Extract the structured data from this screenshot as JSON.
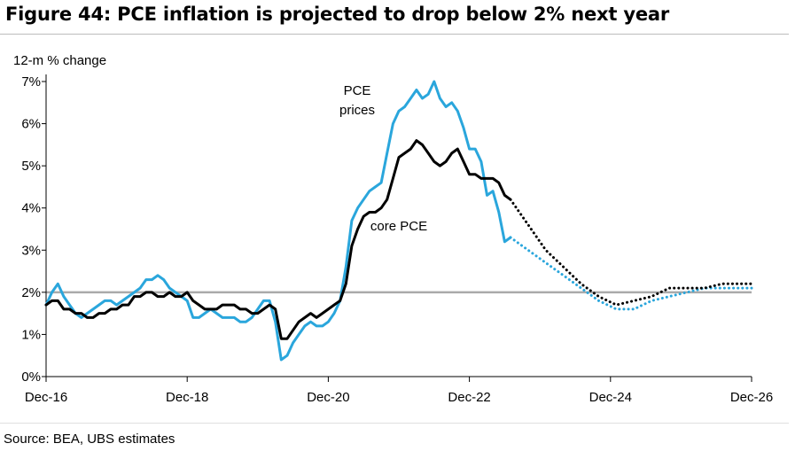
{
  "title": "Figure 44: PCE inflation is projected to drop below 2% next year",
  "source": "Source: BEA, UBS estimates",
  "chart_data": {
    "type": "line",
    "title": "Figure 44: PCE inflation is projected to drop below 2% next year",
    "ylabel": "12-m % change",
    "xlabel": "",
    "ylim": [
      0,
      7
    ],
    "yticks": [
      "0%",
      "1%",
      "2%",
      "3%",
      "4%",
      "5%",
      "6%",
      "7%"
    ],
    "xlim": [
      "2016-12",
      "2026-12"
    ],
    "xticks": [
      "Dec-16",
      "Dec-18",
      "Dec-20",
      "Dec-22",
      "Dec-24",
      "Dec-26"
    ],
    "grid": false,
    "reference_line": {
      "y": 2,
      "color": "#aaaaaa"
    },
    "annotations": [
      {
        "text": "PCE prices",
        "lines": [
          "PCE",
          "prices"
        ]
      },
      {
        "text": "core PCE",
        "lines": [
          "core PCE"
        ]
      }
    ],
    "series": [
      {
        "name": "PCE prices",
        "color": "#2aa6dc",
        "style": "solid",
        "x": [
          "2016-12",
          "2017-01",
          "2017-02",
          "2017-03",
          "2017-04",
          "2017-05",
          "2017-06",
          "2017-07",
          "2017-08",
          "2017-09",
          "2017-10",
          "2017-11",
          "2017-12",
          "2018-01",
          "2018-02",
          "2018-03",
          "2018-04",
          "2018-05",
          "2018-06",
          "2018-07",
          "2018-08",
          "2018-09",
          "2018-10",
          "2018-11",
          "2018-12",
          "2019-01",
          "2019-02",
          "2019-03",
          "2019-04",
          "2019-05",
          "2019-06",
          "2019-07",
          "2019-08",
          "2019-09",
          "2019-10",
          "2019-11",
          "2019-12",
          "2020-01",
          "2020-02",
          "2020-03",
          "2020-04",
          "2020-05",
          "2020-06",
          "2020-07",
          "2020-08",
          "2020-09",
          "2020-10",
          "2020-11",
          "2020-12",
          "2021-01",
          "2021-02",
          "2021-03",
          "2021-04",
          "2021-05",
          "2021-06",
          "2021-07",
          "2021-08",
          "2021-09",
          "2021-10",
          "2021-11",
          "2021-12",
          "2022-01",
          "2022-02",
          "2022-03",
          "2022-04",
          "2022-05",
          "2022-06",
          "2022-07",
          "2022-08",
          "2022-09",
          "2022-10",
          "2022-11",
          "2022-12",
          "2023-01",
          "2023-02",
          "2023-03",
          "2023-04",
          "2023-05",
          "2023-06",
          "2023-07"
        ],
        "values": [
          1.7,
          2.0,
          2.2,
          1.9,
          1.7,
          1.5,
          1.4,
          1.5,
          1.6,
          1.7,
          1.8,
          1.8,
          1.7,
          1.8,
          1.9,
          2.0,
          2.1,
          2.3,
          2.3,
          2.4,
          2.3,
          2.1,
          2.0,
          1.9,
          1.8,
          1.4,
          1.4,
          1.5,
          1.6,
          1.5,
          1.4,
          1.4,
          1.4,
          1.3,
          1.3,
          1.4,
          1.6,
          1.8,
          1.8,
          1.3,
          0.4,
          0.5,
          0.8,
          1.0,
          1.2,
          1.3,
          1.2,
          1.2,
          1.3,
          1.5,
          1.8,
          2.6,
          3.7,
          4.0,
          4.2,
          4.4,
          4.5,
          4.6,
          5.3,
          6.0,
          6.3,
          6.4,
          6.6,
          6.8,
          6.6,
          6.7,
          7.0,
          6.6,
          6.4,
          6.5,
          6.3,
          5.9,
          5.4,
          5.4,
          5.1,
          4.3,
          4.4,
          3.9,
          3.2,
          3.3
        ]
      },
      {
        "name": "core PCE",
        "color": "#000000",
        "style": "solid",
        "x": [
          "2016-12",
          "2017-01",
          "2017-02",
          "2017-03",
          "2017-04",
          "2017-05",
          "2017-06",
          "2017-07",
          "2017-08",
          "2017-09",
          "2017-10",
          "2017-11",
          "2017-12",
          "2018-01",
          "2018-02",
          "2018-03",
          "2018-04",
          "2018-05",
          "2018-06",
          "2018-07",
          "2018-08",
          "2018-09",
          "2018-10",
          "2018-11",
          "2018-12",
          "2019-01",
          "2019-02",
          "2019-03",
          "2019-04",
          "2019-05",
          "2019-06",
          "2019-07",
          "2019-08",
          "2019-09",
          "2019-10",
          "2019-11",
          "2019-12",
          "2020-01",
          "2020-02",
          "2020-03",
          "2020-04",
          "2020-05",
          "2020-06",
          "2020-07",
          "2020-08",
          "2020-09",
          "2020-10",
          "2020-11",
          "2020-12",
          "2021-01",
          "2021-02",
          "2021-03",
          "2021-04",
          "2021-05",
          "2021-06",
          "2021-07",
          "2021-08",
          "2021-09",
          "2021-10",
          "2021-11",
          "2021-12",
          "2022-01",
          "2022-02",
          "2022-03",
          "2022-04",
          "2022-05",
          "2022-06",
          "2022-07",
          "2022-08",
          "2022-09",
          "2022-10",
          "2022-11",
          "2022-12",
          "2023-01",
          "2023-02",
          "2023-03",
          "2023-04",
          "2023-05",
          "2023-06",
          "2023-07"
        ],
        "values": [
          1.7,
          1.8,
          1.8,
          1.6,
          1.6,
          1.5,
          1.5,
          1.4,
          1.4,
          1.5,
          1.5,
          1.6,
          1.6,
          1.7,
          1.7,
          1.9,
          1.9,
          2.0,
          2.0,
          1.9,
          1.9,
          2.0,
          1.9,
          1.9,
          2.0,
          1.8,
          1.7,
          1.6,
          1.6,
          1.6,
          1.7,
          1.7,
          1.7,
          1.6,
          1.6,
          1.5,
          1.5,
          1.6,
          1.7,
          1.6,
          0.9,
          0.9,
          1.1,
          1.3,
          1.4,
          1.5,
          1.4,
          1.5,
          1.6,
          1.7,
          1.8,
          2.2,
          3.1,
          3.5,
          3.8,
          3.9,
          3.9,
          4.0,
          4.2,
          4.7,
          5.2,
          5.3,
          5.4,
          5.6,
          5.5,
          5.3,
          5.1,
          5.0,
          5.1,
          5.3,
          5.4,
          5.1,
          4.8,
          4.8,
          4.7,
          4.7,
          4.7,
          4.6,
          4.3,
          4.2
        ]
      },
      {
        "name": "PCE prices",
        "color": "#2aa6dc",
        "style": "dotted",
        "x": [
          "2023-07",
          "2023-10",
          "2024-01",
          "2024-04",
          "2024-07",
          "2024-10",
          "2025-01",
          "2025-04",
          "2025-07",
          "2025-10",
          "2026-01",
          "2026-04",
          "2026-07",
          "2026-10",
          "2026-12"
        ],
        "values": [
          3.3,
          3.0,
          2.7,
          2.4,
          2.1,
          1.8,
          1.6,
          1.6,
          1.8,
          1.9,
          2.0,
          2.1,
          2.1,
          2.1,
          2.1
        ]
      },
      {
        "name": "core PCE",
        "color": "#000000",
        "style": "dotted",
        "x": [
          "2023-07",
          "2023-10",
          "2024-01",
          "2024-04",
          "2024-07",
          "2024-10",
          "2025-01",
          "2025-04",
          "2025-07",
          "2025-10",
          "2026-01",
          "2026-04",
          "2026-07",
          "2026-10",
          "2026-12"
        ],
        "values": [
          4.2,
          3.6,
          3.0,
          2.6,
          2.2,
          1.9,
          1.7,
          1.8,
          1.9,
          2.1,
          2.1,
          2.1,
          2.2,
          2.2,
          2.2
        ]
      }
    ]
  }
}
